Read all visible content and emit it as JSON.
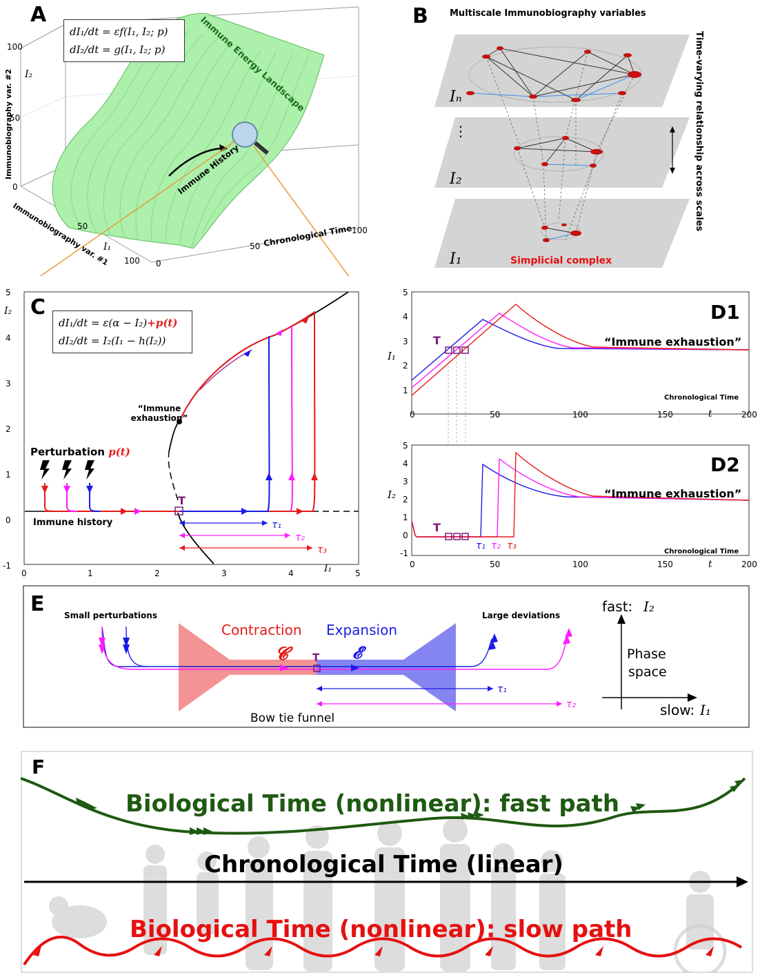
{
  "panels": {
    "A": {
      "letter": "A",
      "eq1": "dI₁/dt = εf(I₁, I₂; p)",
      "eq2": "dI₂/dt =   g(I₁, I₂; p)",
      "landscape_label": "Immune Energy Landscape",
      "history_label": "Immune History",
      "z_axis_label": "Immunobiography var. #2",
      "z_sym": "I₂",
      "z_ticks": [
        "100",
        "50",
        "0"
      ],
      "x_axis_label": "Immunobiography var. #1",
      "x_sym": "I₁",
      "x_ticks": [
        "50",
        "100"
      ],
      "t_axis_label": "Chronological Time",
      "t_ticks": [
        "0",
        "50",
        "100"
      ]
    },
    "B": {
      "letter": "B",
      "title": "Multiscale Immunobiography variables",
      "side_label": "Time-varying relationship across scales",
      "layer_n": "Iₙ",
      "layer_2": "I₂",
      "layer_1": "I₁",
      "dots": "⋮",
      "complex_label": "Simplicial complex"
    },
    "C": {
      "letter": "C",
      "eq1": "dI₁/dt = ε(α − I₂)",
      "eq1_extra": "+p(t)",
      "eq2": "dI₂/dt = I₂(I₁ − h(I₂))",
      "exhaustion": "“Immune exhaustion”",
      "perturbation": "Perturbation",
      "perturbation_sym": "p(t)",
      "history": "Immune history",
      "T": "T",
      "tau1": "τ₁",
      "tau2": "τ₂",
      "tau3": "τ₃",
      "y_sym": "I₂",
      "x_sym": "I₁",
      "y_ticks": [
        "5",
        "4",
        "3",
        "2",
        "1",
        "0",
        "-1"
      ],
      "x_ticks": [
        "0",
        "1",
        "2",
        "3",
        "4",
        "5"
      ]
    },
    "D1": {
      "letter": "D1",
      "exhaustion": "“Immune exhaustion”",
      "time_label": "Chronological Time",
      "y_sym": "I₁",
      "t_sym": "t",
      "T": "T",
      "y_ticks": [
        "5",
        "4",
        "3",
        "2",
        "1",
        "0"
      ],
      "x_ticks": [
        "0",
        "50",
        "100",
        "150",
        "200"
      ]
    },
    "D2": {
      "letter": "D2",
      "exhaustion": "“Immune exhaustion”",
      "time_label": "Chronological Time",
      "y_sym": "I₂",
      "t_sym": "t",
      "T": "T",
      "tau1": "τ₁",
      "tau2": "τ₂",
      "tau3": "τ₃",
      "y_ticks": [
        "5",
        "4",
        "3",
        "2",
        "1",
        "0",
        "-1"
      ],
      "x_ticks": [
        "0",
        "50",
        "100",
        "150",
        "200"
      ]
    },
    "E": {
      "letter": "E",
      "small": "Small perturbations",
      "large": "Large deviations",
      "contraction": "Contraction",
      "expansion": "Expansion",
      "c_sym": "𝓒",
      "e_sym": "𝓔",
      "T": "T",
      "tau1": "τ₁",
      "tau2": "τ₂",
      "funnel": "Bow tie funnel",
      "fast": "fast:",
      "fast_sym": "I₂",
      "slow": "slow:",
      "slow_sym": "I₁",
      "phase1": "Phase",
      "phase2": "space"
    },
    "F": {
      "letter": "F",
      "fast_path": "Biological Time (nonlinear): fast path",
      "chrono": "Chronological Time (linear)",
      "slow_path": "Biological Time (nonlinear): slow path"
    }
  },
  "colors": {
    "landscape": "#a8f0a8",
    "tau1": "#1a1ae6",
    "tau2": "#ff1aff",
    "tau3": "#e61a1a",
    "T_box": "#7a1a7a",
    "contraction": "#f28080",
    "expansion": "#7070f0",
    "fast_path": "#1e5a12",
    "slow_path": "#e61010"
  }
}
